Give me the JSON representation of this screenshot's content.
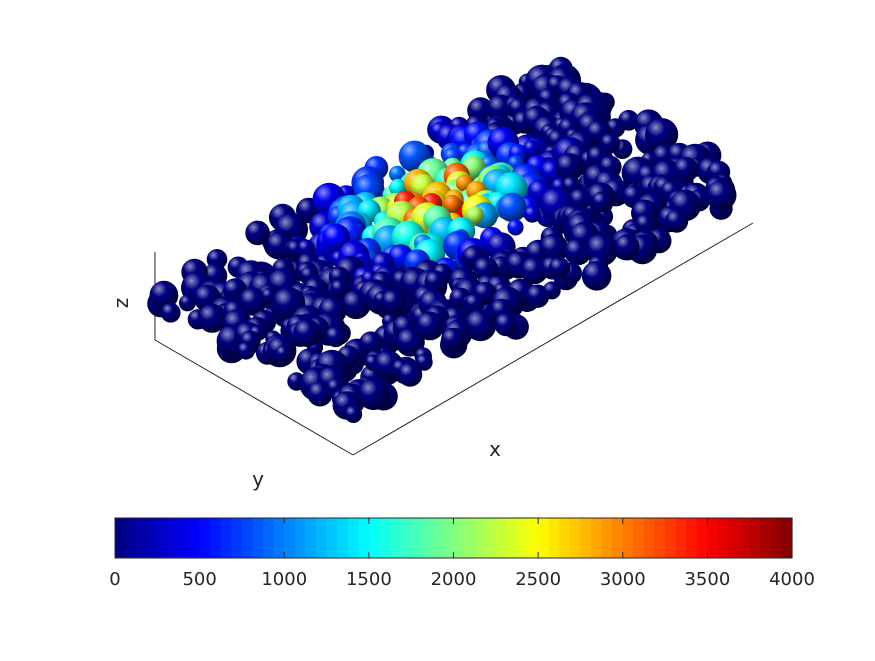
{
  "chart_data": {
    "type": "scatter",
    "subtype": "3d-sphere-packing",
    "title": "",
    "xlabel": "x",
    "ylabel": "y",
    "zlabel": "z",
    "grid": false,
    "axis_ticks": false,
    "colormap": "jet",
    "colorbar": {
      "location": "bottom",
      "range": [
        0,
        4000
      ],
      "ticks": [
        "0",
        "500",
        "1000",
        "1500",
        "2000",
        "2500",
        "3000",
        "3500",
        "4000"
      ]
    },
    "value_field": {
      "background": 0,
      "peak_value": 4000,
      "peak_location_xy": [
        0.55,
        0.7
      ],
      "note_visible": "dense random sphere pack; most spheres near 0 (dark blue), a hot region of high values near the far side centre"
    }
  }
}
